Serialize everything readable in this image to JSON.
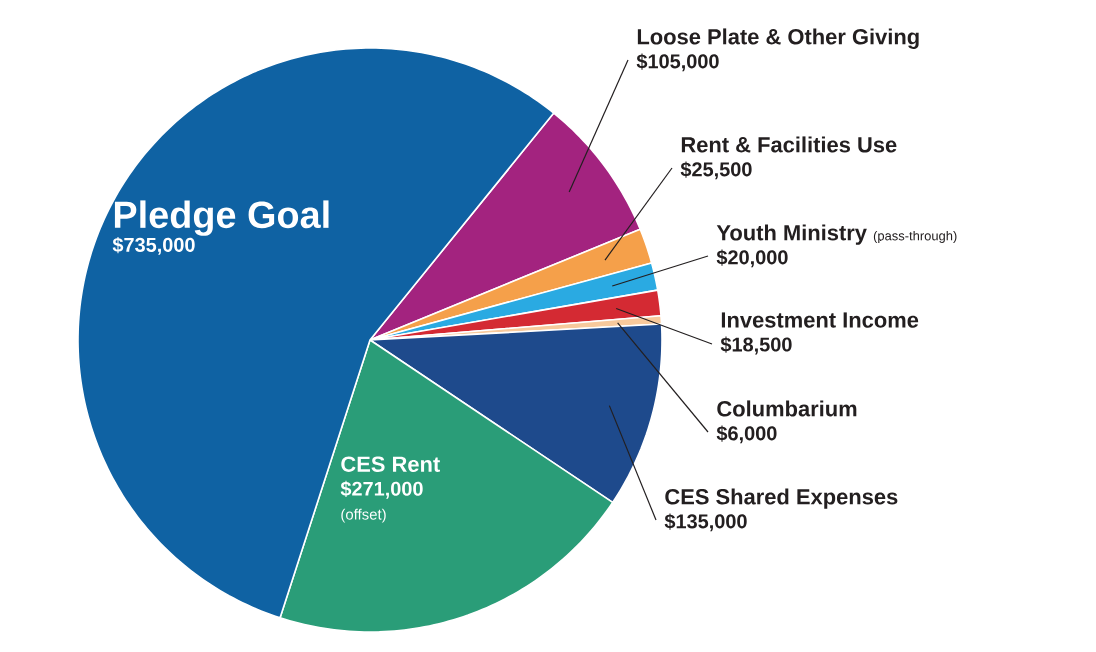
{
  "chart_data": {
    "type": "pie",
    "categories": [
      "Loose Plate & Other Giving",
      "Rent & Facilities Use",
      "Youth Ministry",
      "Investment Income",
      "Columbarium",
      "CES Shared Expenses",
      "CES Rent",
      "Pledge Goal"
    ],
    "values": [
      105000,
      25500,
      20000,
      18500,
      6000,
      135000,
      271000,
      735000
    ],
    "value_labels": [
      "$105,000",
      "$25,500",
      "$20,000",
      "$18,500",
      "$6,000",
      "$135,000",
      "$271,000",
      "$735,000"
    ],
    "colors": [
      "#a3237f",
      "#f5a04a",
      "#2aaae2",
      "#d42a33",
      "#f7c99c",
      "#1e4a8c",
      "#2a9d78",
      "#0f62a3"
    ],
    "annotations": [
      "(pass-through)",
      "(offset)"
    ]
  }
}
